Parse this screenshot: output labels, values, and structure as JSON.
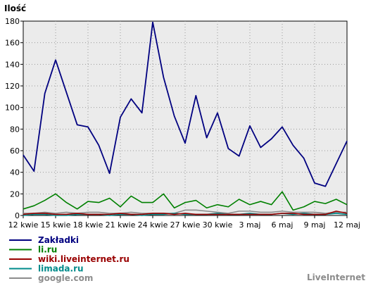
{
  "chart_data": {
    "type": "line",
    "ylabel": "Ilość",
    "xlabel": "",
    "ylim": [
      0,
      180
    ],
    "yticks": [
      0,
      20,
      40,
      60,
      80,
      100,
      120,
      140,
      160,
      180
    ],
    "grid": true,
    "legend_position": "bottom-left",
    "x_start_date": "2024-04-12",
    "x_label_step": 3,
    "x_tick_labels": [
      "12 kwie",
      "15 kwie",
      "18 kwie",
      "21 kwie",
      "24 kwie",
      "27 kwie",
      "30 kwie",
      "3 maj",
      "6 maj",
      "9 maj",
      "12 maj"
    ],
    "series": [
      {
        "name": "Zakładki",
        "color": "#000080",
        "values": [
          56,
          41,
          113,
          144,
          114,
          84,
          82,
          65,
          39,
          91,
          108,
          95,
          179,
          128,
          92,
          67,
          111,
          72,
          95,
          62,
          55,
          83,
          63,
          71,
          82,
          65,
          53,
          30,
          27,
          48,
          69
        ]
      },
      {
        "name": "li.ru",
        "color": "#008000",
        "values": [
          6,
          9,
          14,
          20,
          12,
          6,
          13,
          12,
          16,
          8,
          18,
          12,
          12,
          20,
          7,
          12,
          14,
          7,
          10,
          8,
          15,
          10,
          13,
          10,
          22,
          5,
          8,
          13,
          11,
          15,
          10
        ]
      },
      {
        "name": "wiki.liveinternet.ru",
        "color": "#990000",
        "values": [
          1,
          2,
          2,
          1,
          1,
          2,
          1,
          1,
          1,
          2,
          1,
          1,
          2,
          2,
          1,
          2,
          1,
          1,
          1,
          1,
          1,
          1,
          1,
          1,
          2,
          2,
          1,
          1,
          1,
          4,
          2
        ]
      },
      {
        "name": "limada.ru",
        "color": "#008b8b",
        "values": [
          0,
          1,
          1,
          0,
          0,
          1,
          1,
          1,
          0,
          1,
          1,
          0,
          1,
          1,
          2,
          1,
          1,
          1,
          2,
          1,
          1,
          2,
          1,
          1,
          2,
          1,
          2,
          1,
          1,
          2,
          1
        ]
      },
      {
        "name": "google.com",
        "color": "#8c8c8c",
        "values": [
          2,
          2,
          3,
          2,
          3,
          2,
          3,
          3,
          2,
          2,
          3,
          2,
          2,
          2,
          2,
          5,
          5,
          4,
          3,
          2,
          4,
          4,
          3,
          3,
          4,
          3,
          3,
          3,
          2,
          3,
          3
        ]
      }
    ]
  },
  "footer": {
    "brand": "LiveInternet"
  }
}
